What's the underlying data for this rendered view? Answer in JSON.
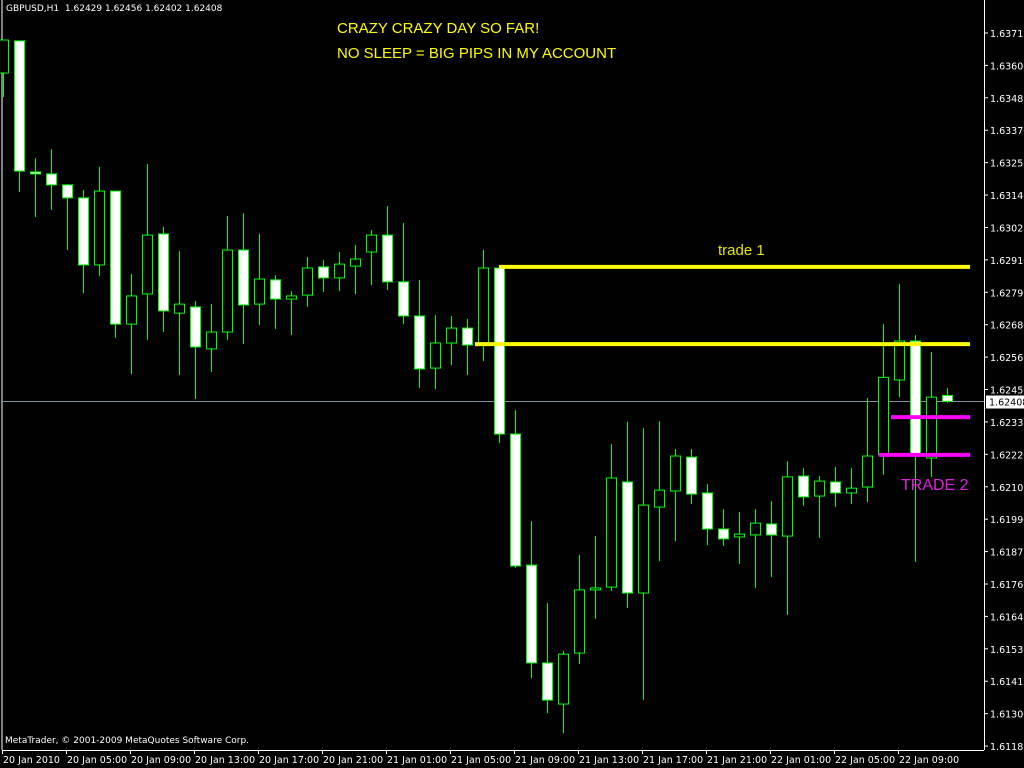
{
  "header": {
    "symbol_timeframe": "GBPUSD,H1",
    "quote": "1.62429 1.62456 1.62402 1.62408"
  },
  "copyright": "MetaTrader, © 2001-2009 MetaQuotes Software Corp.",
  "annotations": {
    "line1": "CRAZY CRAZY DAY SO FAR!",
    "line2": "NO SLEEP = BIG PIPS IN MY ACCOUNT",
    "trade1": "trade 1",
    "trade2": "TRADE 2"
  },
  "colors": {
    "background": "#000000",
    "candle": "#00ff00",
    "bear_fill": "#ffffff",
    "bull_fill": "#000000",
    "trade1": "#ffff00",
    "trade2": "#ff00ff",
    "bid_line": "#8090a0"
  },
  "chart_data": {
    "type": "candlestick",
    "symbol": "GBPUSD",
    "timeframe": "H1",
    "start": "20 Jan 2010 00:00",
    "ylim": [
      1.61171,
      1.63832
    ],
    "grid": false,
    "y_ticks": [
      "1.63715",
      "1.63600",
      "1.63485",
      "1.63370",
      "1.63255",
      "1.63140",
      "1.63025",
      "1.62910",
      "1.62795",
      "1.62680",
      "1.62565",
      "1.62450",
      "1.62335",
      "1.62220",
      "1.62105",
      "1.61990",
      "1.61875",
      "1.61760",
      "1.61645",
      "1.61530",
      "1.61415",
      "1.61300",
      "1.61185"
    ],
    "x_ticks": [
      "20 Jan 2010",
      "20 Jan 05:00",
      "20 Jan 09:00",
      "20 Jan 13:00",
      "20 Jan 17:00",
      "20 Jan 21:00",
      "21 Jan 01:00",
      "21 Jan 05:00",
      "21 Jan 09:00",
      "21 Jan 13:00",
      "21 Jan 17:00",
      "21 Jan 21:00",
      "22 Jan 01:00",
      "22 Jan 05:00",
      "22 Jan 09:00"
    ],
    "bid": "1.62408",
    "ohlc": [
      [
        1.63573,
        1.6369,
        1.63488,
        1.6369
      ],
      [
        1.63687,
        1.63687,
        1.63151,
        1.63225
      ],
      [
        1.63222,
        1.63271,
        1.63062,
        1.63215
      ],
      [
        1.63215,
        1.63303,
        1.63087,
        1.63176
      ],
      [
        1.63176,
        1.63179,
        1.62945,
        1.6313
      ],
      [
        1.6313,
        1.63158,
        1.62792,
        1.62892
      ],
      [
        1.62892,
        1.6324,
        1.62853,
        1.63154
      ],
      [
        1.63154,
        1.63154,
        1.62633,
        1.62682
      ],
      [
        1.62682,
        1.6286,
        1.62505,
        1.62782
      ],
      [
        1.62789,
        1.6325,
        1.62626,
        1.62998
      ],
      [
        1.63002,
        1.63027,
        1.62654,
        1.62729
      ],
      [
        1.62721,
        1.62941,
        1.62501,
        1.62753
      ],
      [
        1.62743,
        1.62764,
        1.62416,
        1.62601
      ],
      [
        1.62594,
        1.62753,
        1.62512,
        1.62654
      ],
      [
        1.62654,
        1.63066,
        1.62626,
        1.62945
      ],
      [
        1.62945,
        1.63076,
        1.62611,
        1.6275
      ],
      [
        1.62753,
        1.63002,
        1.62679,
        1.62842
      ],
      [
        1.62839,
        1.62856,
        1.62665,
        1.62771
      ],
      [
        1.62771,
        1.62799,
        1.62643,
        1.62782
      ],
      [
        1.62785,
        1.6292,
        1.62743,
        1.62881
      ],
      [
        1.62885,
        1.6291,
        1.62796,
        1.62846
      ],
      [
        1.62846,
        1.62938,
        1.62799,
        1.62895
      ],
      [
        1.62888,
        1.62963,
        1.62789,
        1.62913
      ],
      [
        1.62938,
        1.63016,
        1.62821,
        1.62998
      ],
      [
        1.62998,
        1.63101,
        1.62803,
        1.62832
      ],
      [
        1.62832,
        1.63041,
        1.62682,
        1.62711
      ],
      [
        1.62711,
        1.62839,
        1.62455,
        1.62523
      ],
      [
        1.62526,
        1.62714,
        1.62452,
        1.62615
      ],
      [
        1.62615,
        1.62711,
        1.62537,
        1.62668
      ],
      [
        1.62668,
        1.627,
        1.62501,
        1.62608
      ],
      [
        1.62608,
        1.62945,
        1.62551,
        1.62881
      ],
      [
        1.62881,
        1.62881,
        1.6226,
        1.62292
      ],
      [
        1.62292,
        1.62377,
        1.61817,
        1.61824
      ],
      [
        1.61827,
        1.61983,
        1.61426,
        1.6148
      ],
      [
        1.6148,
        1.61692,
        1.61302,
        1.61348
      ],
      [
        1.61334,
        1.61522,
        1.61231,
        1.61511
      ],
      [
        1.61515,
        1.61863,
        1.61476,
        1.61739
      ],
      [
        1.61739,
        1.6193,
        1.61636,
        1.61746
      ],
      [
        1.61749,
        1.62257,
        1.61735,
        1.62136
      ],
      [
        1.62122,
        1.62335,
        1.61675,
        1.61728
      ],
      [
        1.61728,
        1.62313,
        1.61348,
        1.6204
      ],
      [
        1.62033,
        1.62338,
        1.61841,
        1.62093
      ],
      [
        1.6209,
        1.62239,
        1.61912,
        1.62214
      ],
      [
        1.6221,
        1.62239,
        1.62044,
        1.62079
      ],
      [
        1.62083,
        1.62115,
        1.61898,
        1.61955
      ],
      [
        1.61955,
        1.62026,
        1.61895,
        1.6192
      ],
      [
        1.61927,
        1.62015,
        1.61831,
        1.61937
      ],
      [
        1.61934,
        1.62026,
        1.61746,
        1.61976
      ],
      [
        1.61973,
        1.62054,
        1.61785,
        1.61934
      ],
      [
        1.6193,
        1.62196,
        1.6165,
        1.6214
      ],
      [
        1.62143,
        1.62171,
        1.62037,
        1.62069
      ],
      [
        1.62072,
        1.62143,
        1.61923,
        1.62125
      ],
      [
        1.62122,
        1.62175,
        1.62033,
        1.62083
      ],
      [
        1.62083,
        1.62171,
        1.62044,
        1.621
      ],
      [
        1.62104,
        1.6242,
        1.62051,
        1.62214
      ],
      [
        1.62218,
        1.62682,
        1.62147,
        1.62493
      ],
      [
        1.62484,
        1.62824,
        1.62423,
        1.62622
      ],
      [
        1.62622,
        1.62643,
        1.61838,
        1.62218
      ],
      [
        1.62207,
        1.62583,
        1.6214,
        1.62423
      ],
      [
        1.62429,
        1.62456,
        1.62402,
        1.62408
      ]
    ],
    "lines": [
      {
        "name": "trade 1 upper",
        "price": 1.62885,
        "from": "21 Jan 07:00",
        "color": "#ffff00"
      },
      {
        "name": "trade 1 lower",
        "price": 1.62611,
        "from": "21 Jan 05:30",
        "color": "#ffff00"
      },
      {
        "name": "trade 2 upper",
        "price": 1.62352,
        "from": "22 Jan 07:30",
        "color": "#ff00ff"
      },
      {
        "name": "trade 2 lower",
        "price": 1.62218,
        "from": "22 Jan 06:45",
        "color": "#ff00ff"
      }
    ]
  }
}
